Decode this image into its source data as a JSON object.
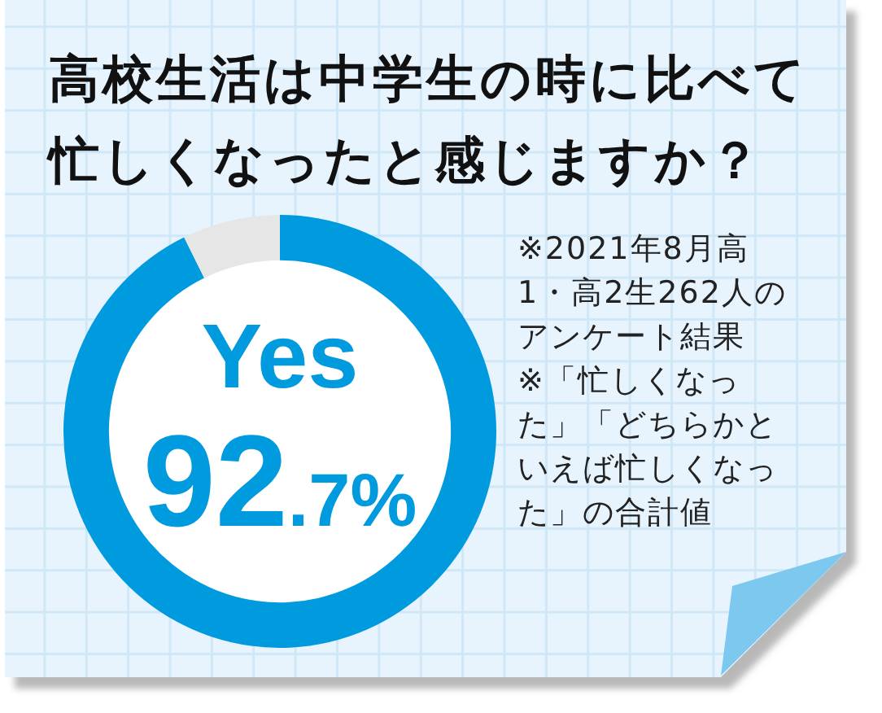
{
  "chart_data": {
    "type": "donut",
    "title": "高校生活は中学生の時に比べて忙しくなったと感じますか？",
    "categories": [
      "Yes",
      null
    ],
    "values": [
      92.7,
      7.3
    ],
    "colors": [
      "#009ade",
      "#e6e6e6"
    ],
    "value_labels": [
      "92.7%",
      null
    ],
    "annotations": [
      "※2021年8月高1・高2生262人のアンケート結果",
      "※「忙しくなった」「どちらかといえば忙しくなった」の合計値"
    ]
  }
}
